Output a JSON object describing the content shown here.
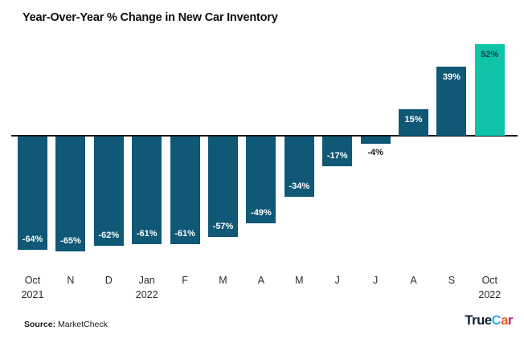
{
  "chart_data": {
    "type": "bar",
    "title": "Year-Over-Year % Change in New Car Inventory",
    "categories": [
      "Oct",
      "N",
      "D",
      "Jan",
      "F",
      "M",
      "A",
      "M",
      "J",
      "J",
      "A",
      "S",
      "Oct"
    ],
    "category_sublabels": [
      "2021",
      "",
      "",
      "2022",
      "",
      "",
      "",
      "",
      "",
      "",
      "",
      "",
      "2022"
    ],
    "values": [
      -64,
      -65,
      -62,
      -61,
      -61,
      -57,
      -49,
      -34,
      -17,
      -4,
      15,
      39,
      52
    ],
    "data_labels": [
      "-64%",
      "-65%",
      "-62%",
      "-61%",
      "-61%",
      "-57%",
      "-49%",
      "-34%",
      "-17%",
      "-4%",
      "15%",
      "39%",
      "52%"
    ],
    "bar_color": "#0f5876",
    "highlight_color": "#0ec3a7",
    "highlight_index": 12,
    "label_color_on_bar": "#ffffff",
    "label_color_on_highlight": "#0d4258",
    "label_color_outside": "#1c1c1c",
    "baseline_color": "#1a1a1a",
    "ylim": [
      -70,
      55
    ],
    "grid": false,
    "legend": false
  },
  "footer": {
    "source_label": "Source:",
    "source_value": "MarketCheck"
  },
  "logo": {
    "segments": [
      {
        "text": "True",
        "color": "#0b1f33"
      },
      {
        "text": "C",
        "color": "#2fb1e5"
      },
      {
        "text": "a",
        "color": "#f15a29"
      },
      {
        "text": "r",
        "color": "#c6168d"
      }
    ]
  }
}
